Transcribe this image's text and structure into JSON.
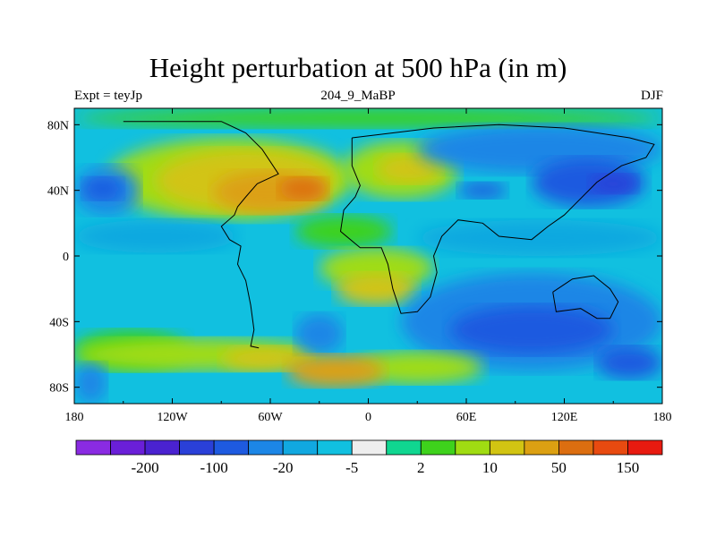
{
  "title": "Height perturbation at 500 hPa (in m)",
  "left_string": "Expt = teyJp",
  "center_string": "204_9_MaBP",
  "right_string": "DJF",
  "chart_data": {
    "type": "heatmap",
    "title": "Height perturbation at 500 hPa (in m)",
    "variable": "500 hPa geopotential height perturbation",
    "units": "m",
    "x_range": [
      -180,
      180
    ],
    "y_range": [
      -90,
      90
    ],
    "x_ticks": [
      {
        "value": -180,
        "label": "180"
      },
      {
        "value": -120,
        "label": "120W"
      },
      {
        "value": -60,
        "label": "60W"
      },
      {
        "value": 0,
        "label": "0"
      },
      {
        "value": 60,
        "label": "60E"
      },
      {
        "value": 120,
        "label": "120E"
      },
      {
        "value": 180,
        "label": "180"
      }
    ],
    "y_ticks": [
      {
        "value": 80,
        "label": "80N"
      },
      {
        "value": 40,
        "label": "40N"
      },
      {
        "value": 0,
        "label": "0"
      },
      {
        "value": -40,
        "label": "40S"
      },
      {
        "value": -80,
        "label": "80S"
      }
    ],
    "colorbar": {
      "colors": [
        "#8a2be2",
        "#6a1fd8",
        "#4a22d0",
        "#2a40d8",
        "#1e5ae0",
        "#1c86e6",
        "#11a8e0",
        "#11c0e0",
        "#eeeeee",
        "#10d690",
        "#3ed21c",
        "#a0dc12",
        "#d2c412",
        "#dca012",
        "#dc6e10",
        "#e84a10",
        "#e81a10"
      ],
      "labels": [
        {
          "after_bin": 1,
          "label": "-200"
        },
        {
          "after_bin": 3,
          "label": "-100"
        },
        {
          "after_bin": 5,
          "label": "-20"
        },
        {
          "after_bin": 7,
          "label": "-5"
        },
        {
          "after_bin": 9,
          "label": "2"
        },
        {
          "after_bin": 11,
          "label": "10"
        },
        {
          "after_bin": 13,
          "label": "50"
        },
        {
          "after_bin": 15,
          "label": "150"
        }
      ]
    },
    "field": [
      {
        "lon": -180,
        "lat": 90,
        "w": 360,
        "h": 180,
        "level": 7
      },
      {
        "lon": -180,
        "lat": 90,
        "w": 360,
        "h": 12,
        "level": 10
      },
      {
        "lon": -160,
        "lat": 72,
        "w": 150,
        "h": 50,
        "level": 11
      },
      {
        "lon": -130,
        "lat": 65,
        "w": 110,
        "h": 38,
        "level": 12
      },
      {
        "lon": -95,
        "lat": 52,
        "w": 70,
        "h": 26,
        "level": 13
      },
      {
        "lon": -55,
        "lat": 48,
        "w": 30,
        "h": 14,
        "level": 14
      },
      {
        "lon": -15,
        "lat": 70,
        "w": 70,
        "h": 35,
        "level": 11
      },
      {
        "lon": 5,
        "lat": 62,
        "w": 40,
        "h": 18,
        "level": 12
      },
      {
        "lon": 30,
        "lat": 80,
        "w": 150,
        "h": 30,
        "level": 5
      },
      {
        "lon": 100,
        "lat": 60,
        "w": 70,
        "h": 30,
        "level": 4
      },
      {
        "lon": 135,
        "lat": 50,
        "w": 30,
        "h": 12,
        "level": 3
      },
      {
        "lon": 55,
        "lat": 45,
        "w": 30,
        "h": 10,
        "level": 4
      },
      {
        "lon": -180,
        "lat": 55,
        "w": 40,
        "h": 30,
        "level": 5
      },
      {
        "lon": -175,
        "lat": 48,
        "w": 25,
        "h": 14,
        "level": 4
      },
      {
        "lon": -180,
        "lat": 22,
        "w": 100,
        "h": 20,
        "level": 6
      },
      {
        "lon": -45,
        "lat": 25,
        "w": 60,
        "h": 20,
        "level": 10
      },
      {
        "lon": -30,
        "lat": 5,
        "w": 70,
        "h": 25,
        "level": 11
      },
      {
        "lon": -20,
        "lat": -10,
        "w": 50,
        "h": 20,
        "level": 12
      },
      {
        "lon": 30,
        "lat": 22,
        "w": 150,
        "h": 22,
        "level": 6
      },
      {
        "lon": 20,
        "lat": -10,
        "w": 160,
        "h": 60,
        "level": 5
      },
      {
        "lon": 50,
        "lat": -30,
        "w": 100,
        "h": 30,
        "level": 4
      },
      {
        "lon": 140,
        "lat": -55,
        "w": 40,
        "h": 20,
        "level": 4
      },
      {
        "lon": -180,
        "lat": -45,
        "w": 70,
        "h": 25,
        "level": 10
      },
      {
        "lon": -180,
        "lat": -50,
        "w": 150,
        "h": 20,
        "level": 11
      },
      {
        "lon": -90,
        "lat": -55,
        "w": 55,
        "h": 15,
        "level": 12
      },
      {
        "lon": -45,
        "lat": -35,
        "w": 30,
        "h": 25,
        "level": 5
      },
      {
        "lon": -10,
        "lat": -58,
        "w": 80,
        "h": 20,
        "level": 11
      },
      {
        "lon": -50,
        "lat": -60,
        "w": 60,
        "h": 20,
        "level": 13
      },
      {
        "lon": -180,
        "lat": -65,
        "w": 20,
        "h": 25,
        "level": 5
      }
    ],
    "outlines": [
      {
        "kind": "americas-west",
        "points": [
          [
            -150,
            82
          ],
          [
            -90,
            82
          ],
          [
            -75,
            75
          ],
          [
            -65,
            65
          ],
          [
            -55,
            50
          ],
          [
            -68,
            44
          ],
          [
            -75,
            36
          ],
          [
            -80,
            30
          ],
          [
            -82,
            25
          ],
          [
            -90,
            18
          ],
          [
            -85,
            10
          ],
          [
            -78,
            6
          ],
          [
            -80,
            -5
          ],
          [
            -75,
            -15
          ],
          [
            -72,
            -30
          ],
          [
            -70,
            -45
          ],
          [
            -72,
            -55
          ],
          [
            -67,
            -56
          ]
        ]
      },
      {
        "kind": "eurasia-africa",
        "points": [
          [
            -10,
            72
          ],
          [
            40,
            78
          ],
          [
            80,
            80
          ],
          [
            120,
            78
          ],
          [
            160,
            72
          ],
          [
            175,
            68
          ],
          [
            170,
            60
          ],
          [
            155,
            55
          ],
          [
            140,
            45
          ],
          [
            130,
            35
          ],
          [
            120,
            25
          ],
          [
            110,
            18
          ],
          [
            100,
            10
          ],
          [
            80,
            12
          ],
          [
            70,
            20
          ],
          [
            55,
            22
          ],
          [
            45,
            12
          ],
          [
            40,
            0
          ],
          [
            42,
            -10
          ],
          [
            38,
            -25
          ],
          [
            30,
            -34
          ],
          [
            20,
            -35
          ],
          [
            15,
            -20
          ],
          [
            12,
            -5
          ],
          [
            8,
            5
          ],
          [
            -5,
            5
          ],
          [
            -17,
            15
          ],
          [
            -15,
            28
          ],
          [
            -8,
            36
          ],
          [
            -5,
            43
          ],
          [
            -10,
            55
          ],
          [
            -10,
            72
          ]
        ]
      },
      {
        "kind": "australia",
        "points": [
          [
            113,
            -22
          ],
          [
            125,
            -14
          ],
          [
            138,
            -12
          ],
          [
            148,
            -20
          ],
          [
            153,
            -28
          ],
          [
            148,
            -38
          ],
          [
            140,
            -38
          ],
          [
            130,
            -32
          ],
          [
            115,
            -34
          ],
          [
            113,
            -22
          ]
        ]
      }
    ]
  }
}
